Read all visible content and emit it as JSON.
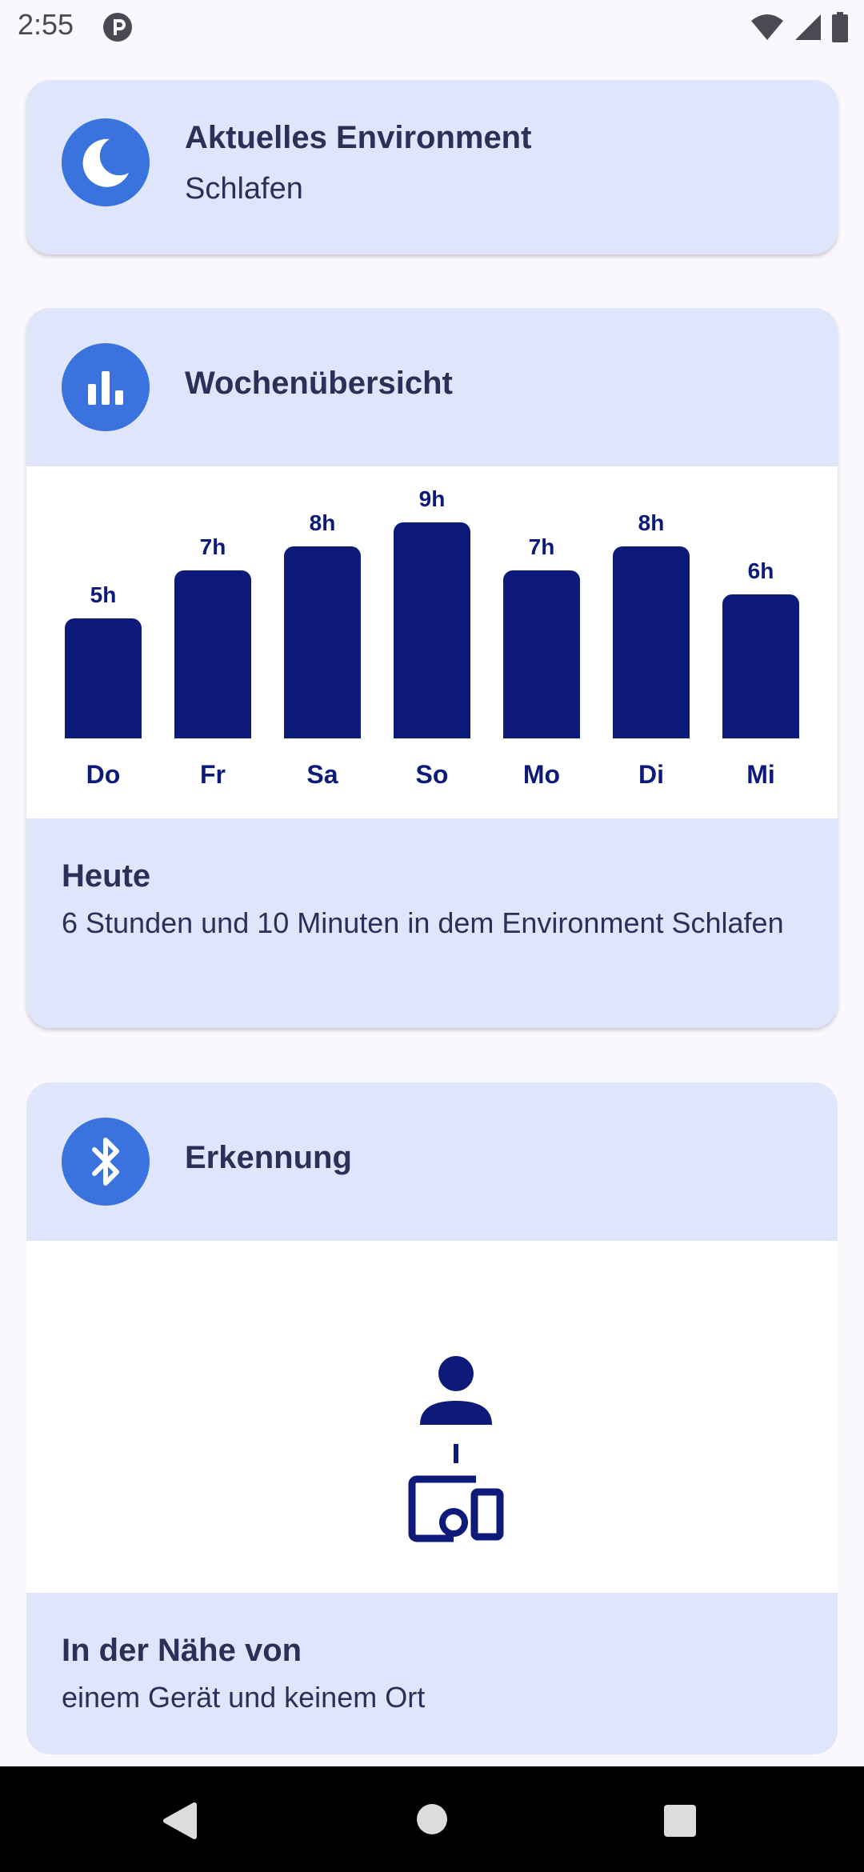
{
  "status_bar": {
    "time": "2:55"
  },
  "environment_card": {
    "title": "Aktuelles Environment",
    "subtitle": "Schlafen",
    "icon": "moon-icon"
  },
  "week_card": {
    "title": "Wochenübersicht",
    "icon": "bar-chart-icon",
    "today_title": "Heute",
    "today_text": "6 Stunden und 10 Minuten in dem Environment Schlafen"
  },
  "chart_data": {
    "type": "bar",
    "categories": [
      "Do",
      "Fr",
      "Sa",
      "So",
      "Mo",
      "Di",
      "Mi"
    ],
    "values": [
      5,
      7,
      8,
      9,
      7,
      8,
      6
    ],
    "labels": [
      "5h",
      "7h",
      "8h",
      "9h",
      "7h",
      "8h",
      "6h"
    ],
    "bar_color": "#0d1a7a"
  },
  "detection_card": {
    "title": "Erkennung",
    "icon": "bluetooth-icon",
    "nearby_title": "In der Nähe von",
    "nearby_text": "einem Gerät und keinem Ort"
  },
  "colors": {
    "accent": "#3a73dd",
    "card_bg": "#dfe5fb",
    "dark_navy": "#0d1a7a"
  }
}
